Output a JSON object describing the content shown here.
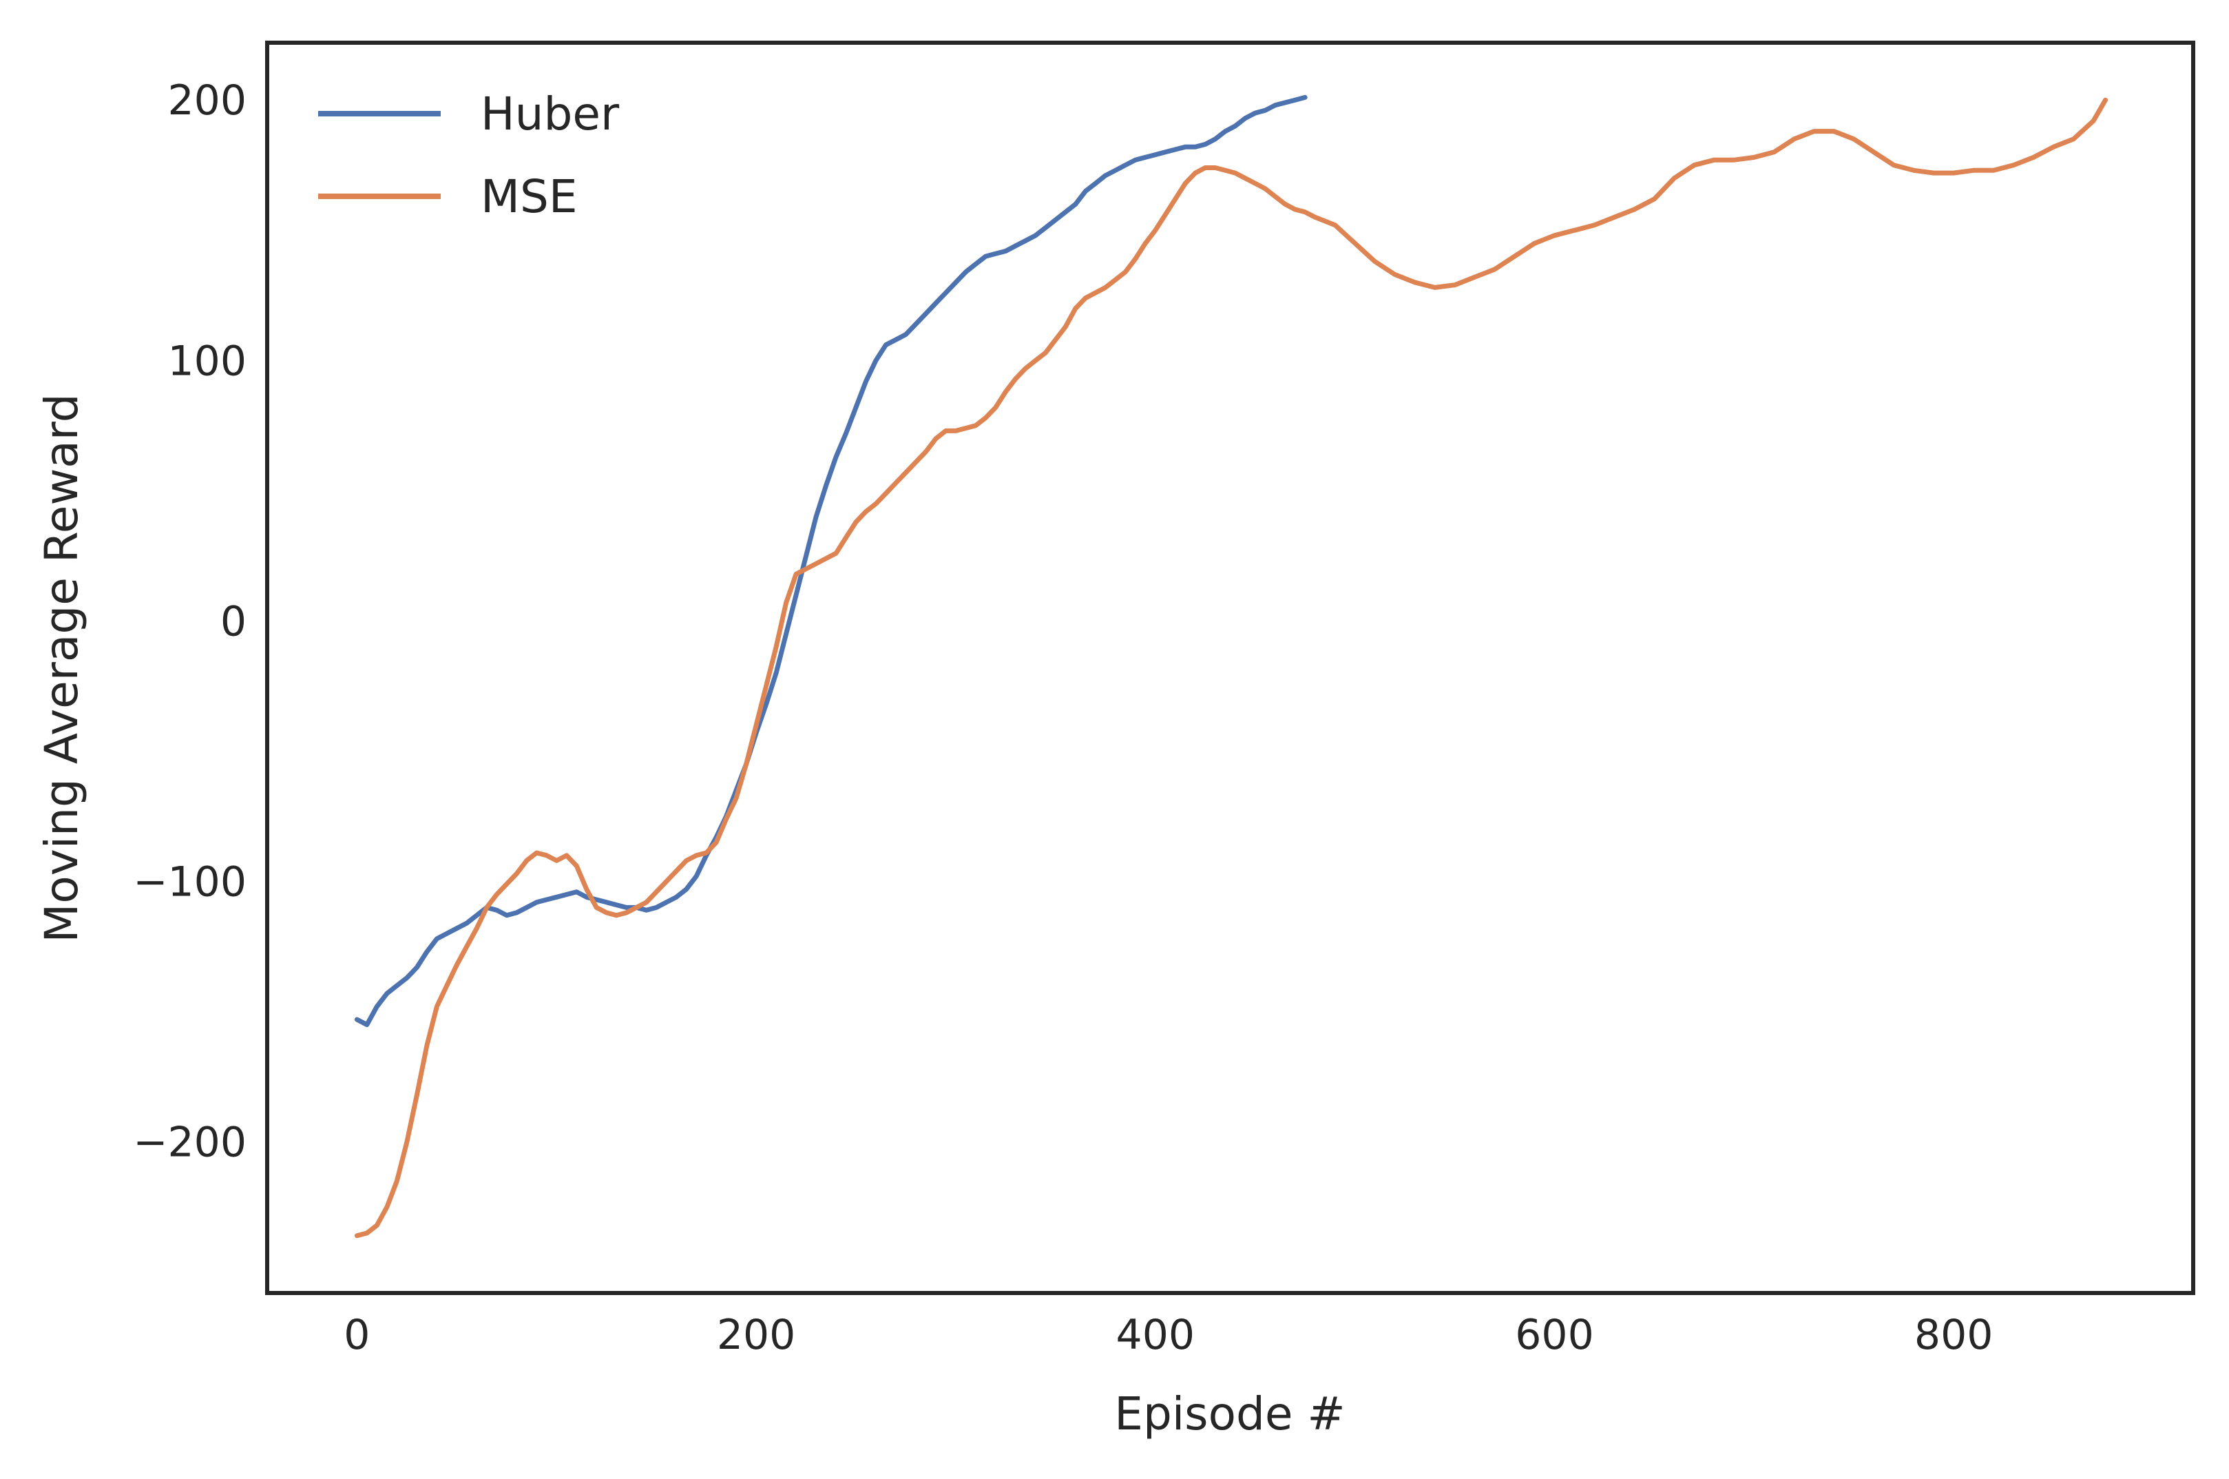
{
  "chart_data": {
    "type": "line",
    "title": "",
    "xlabel": "Episode #",
    "ylabel": "Moving Average Reward",
    "xlim": [
      -45,
      920
    ],
    "ylim": [
      -258,
      222
    ],
    "xticks": [
      0,
      200,
      400,
      600,
      800
    ],
    "yticks": [
      -200,
      -100,
      0,
      100,
      200
    ],
    "xtick_labels": [
      "0",
      "200",
      "400",
      "600",
      "800"
    ],
    "ytick_labels": [
      "−200",
      "−100",
      "0",
      "100",
      "200"
    ],
    "grid": false,
    "legend_position": "top-left",
    "series": [
      {
        "name": "Huber",
        "color": "#4c72b0",
        "x": [
          0,
          5,
          10,
          15,
          20,
          25,
          30,
          35,
          40,
          45,
          50,
          55,
          60,
          65,
          70,
          75,
          80,
          85,
          90,
          95,
          100,
          105,
          110,
          115,
          120,
          125,
          130,
          135,
          140,
          145,
          150,
          155,
          160,
          165,
          170,
          175,
          180,
          185,
          190,
          195,
          200,
          205,
          210,
          215,
          220,
          225,
          230,
          235,
          240,
          245,
          250,
          255,
          260,
          265,
          270,
          275,
          280,
          285,
          290,
          295,
          300,
          305,
          310,
          315,
          320,
          325,
          330,
          335,
          340,
          345,
          350,
          355,
          360,
          365,
          370,
          375,
          380,
          385,
          390,
          395,
          400,
          405,
          410,
          415,
          420,
          425,
          430,
          435,
          440,
          445,
          450,
          455,
          460,
          465,
          470,
          475
        ],
        "y": [
          -153,
          -155,
          -148,
          -143,
          -140,
          -137,
          -133,
          -127,
          -122,
          -120,
          -118,
          -116,
          -113,
          -110,
          -111,
          -113,
          -112,
          -110,
          -108,
          -107,
          -106,
          -105,
          -104,
          -106,
          -107,
          -108,
          -109,
          -110,
          -110,
          -111,
          -110,
          -108,
          -106,
          -103,
          -98,
          -90,
          -83,
          -75,
          -65,
          -55,
          -43,
          -32,
          -20,
          -5,
          10,
          25,
          40,
          52,
          63,
          72,
          82,
          92,
          100,
          106,
          108,
          110,
          114,
          118,
          122,
          126,
          130,
          134,
          137,
          140,
          141,
          142,
          144,
          146,
          148,
          151,
          154,
          157,
          160,
          165,
          168,
          171,
          173,
          175,
          177,
          178,
          179,
          180,
          181,
          182,
          182,
          183,
          185,
          188,
          190,
          193,
          195,
          196,
          198,
          199,
          200,
          201
        ]
      },
      {
        "name": "MSE",
        "color": "#dd8452",
        "x": [
          0,
          5,
          10,
          15,
          20,
          25,
          30,
          35,
          40,
          45,
          50,
          55,
          60,
          65,
          70,
          75,
          80,
          85,
          90,
          95,
          100,
          105,
          110,
          115,
          120,
          125,
          130,
          135,
          140,
          145,
          150,
          155,
          160,
          165,
          170,
          175,
          180,
          185,
          190,
          195,
          200,
          205,
          210,
          215,
          220,
          225,
          230,
          235,
          240,
          245,
          250,
          255,
          260,
          265,
          270,
          275,
          280,
          285,
          290,
          295,
          300,
          305,
          310,
          315,
          320,
          325,
          330,
          335,
          340,
          345,
          350,
          355,
          360,
          365,
          370,
          375,
          380,
          385,
          390,
          395,
          400,
          405,
          410,
          415,
          420,
          425,
          430,
          435,
          440,
          445,
          450,
          455,
          460,
          465,
          470,
          475,
          480,
          490,
          500,
          510,
          520,
          530,
          540,
          550,
          560,
          570,
          580,
          590,
          600,
          610,
          620,
          630,
          640,
          650,
          660,
          670,
          680,
          690,
          700,
          710,
          720,
          730,
          740,
          750,
          760,
          770,
          780,
          790,
          800,
          810,
          820,
          830,
          840,
          850,
          860,
          870,
          876
        ],
        "y": [
          -236,
          -235,
          -232,
          -225,
          -215,
          -200,
          -182,
          -163,
          -148,
          -140,
          -132,
          -125,
          -118,
          -110,
          -105,
          -101,
          -97,
          -92,
          -89,
          -90,
          -92,
          -90,
          -94,
          -103,
          -110,
          -112,
          -113,
          -112,
          -110,
          -108,
          -104,
          -100,
          -96,
          -92,
          -90,
          -89,
          -85,
          -76,
          -68,
          -55,
          -40,
          -25,
          -10,
          7,
          18,
          20,
          22,
          24,
          26,
          32,
          38,
          42,
          45,
          49,
          53,
          57,
          61,
          65,
          70,
          73,
          73,
          74,
          75,
          78,
          82,
          88,
          93,
          97,
          100,
          103,
          108,
          113,
          120,
          124,
          126,
          128,
          131,
          134,
          139,
          145,
          150,
          156,
          162,
          168,
          172,
          174,
          174,
          173,
          172,
          170,
          168,
          166,
          163,
          160,
          158,
          157,
          155,
          152,
          145,
          138,
          133,
          130,
          128,
          129,
          132,
          135,
          140,
          145,
          148,
          150,
          152,
          155,
          158,
          162,
          170,
          175,
          177,
          177,
          178,
          180,
          185,
          188,
          188,
          185,
          180,
          175,
          173,
          172,
          172,
          173,
          173,
          175,
          178,
          182,
          185,
          192,
          200
        ]
      }
    ]
  }
}
